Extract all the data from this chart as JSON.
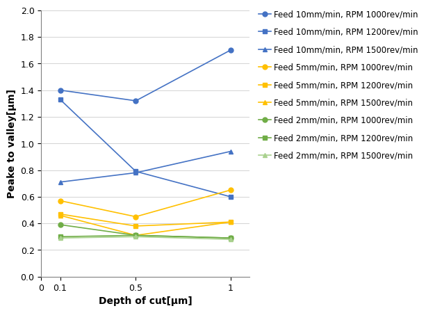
{
  "x": [
    0.1,
    0.5,
    1.0
  ],
  "series": [
    {
      "label": "Feed 10mm/min, RPM 1000rev/min",
      "y": [
        1.4,
        1.32,
        1.7
      ],
      "color": "#4472C4",
      "marker": "o",
      "linestyle": "-"
    },
    {
      "label": "Feed 10mm/min, RPM 1200rev/min",
      "y": [
        1.33,
        0.79,
        0.6
      ],
      "color": "#4472C4",
      "marker": "s",
      "linestyle": "-"
    },
    {
      "label": "Feed 10mm/min, RPM 1500rev/min",
      "y": [
        0.71,
        0.78,
        0.94
      ],
      "color": "#4472C4",
      "marker": "^",
      "linestyle": "-"
    },
    {
      "label": "Feed 5mm/min, RPM 1000rev/min",
      "y": [
        0.57,
        0.45,
        0.65
      ],
      "color": "#FFC000",
      "marker": "o",
      "linestyle": "-"
    },
    {
      "label": "Feed 5mm/min, RPM 1200rev/min",
      "y": [
        0.47,
        0.38,
        0.41
      ],
      "color": "#FFC000",
      "marker": "s",
      "linestyle": "-"
    },
    {
      "label": "Feed 5mm/min, RPM 1500rev/min",
      "y": [
        0.46,
        0.31,
        0.41
      ],
      "color": "#FFC000",
      "marker": "^",
      "linestyle": "-"
    },
    {
      "label": "Feed 2mm/min, RPM 1000rev/min",
      "y": [
        0.39,
        0.31,
        0.29
      ],
      "color": "#70AD47",
      "marker": "o",
      "linestyle": "-"
    },
    {
      "label": "Feed 2mm/min, RPM 1200rev/min",
      "y": [
        0.3,
        0.31,
        0.29
      ],
      "color": "#70AD47",
      "marker": "s",
      "linestyle": "-"
    },
    {
      "label": "Feed 2mm/min, RPM 1500rev/min",
      "y": [
        0.29,
        0.3,
        0.28
      ],
      "color": "#A9D18E",
      "marker": "^",
      "linestyle": "-"
    }
  ],
  "xlabel": "Depth of cut[μm]",
  "ylabel": "Peake to valley[μm]",
  "xlim": [
    0,
    1.1
  ],
  "ylim": [
    0,
    2.0
  ],
  "yticks": [
    0,
    0.2,
    0.4,
    0.6,
    0.8,
    1.0,
    1.2,
    1.4,
    1.6,
    1.8,
    2.0
  ],
  "xtick_vals": [
    0,
    0.1,
    0.5,
    1.0
  ],
  "xtick_labels": [
    "0",
    "0.1",
    "0.5",
    "1"
  ],
  "background_color": "#ffffff",
  "legend_fontsize": 8.5,
  "axis_label_fontsize": 10,
  "tick_fontsize": 9
}
